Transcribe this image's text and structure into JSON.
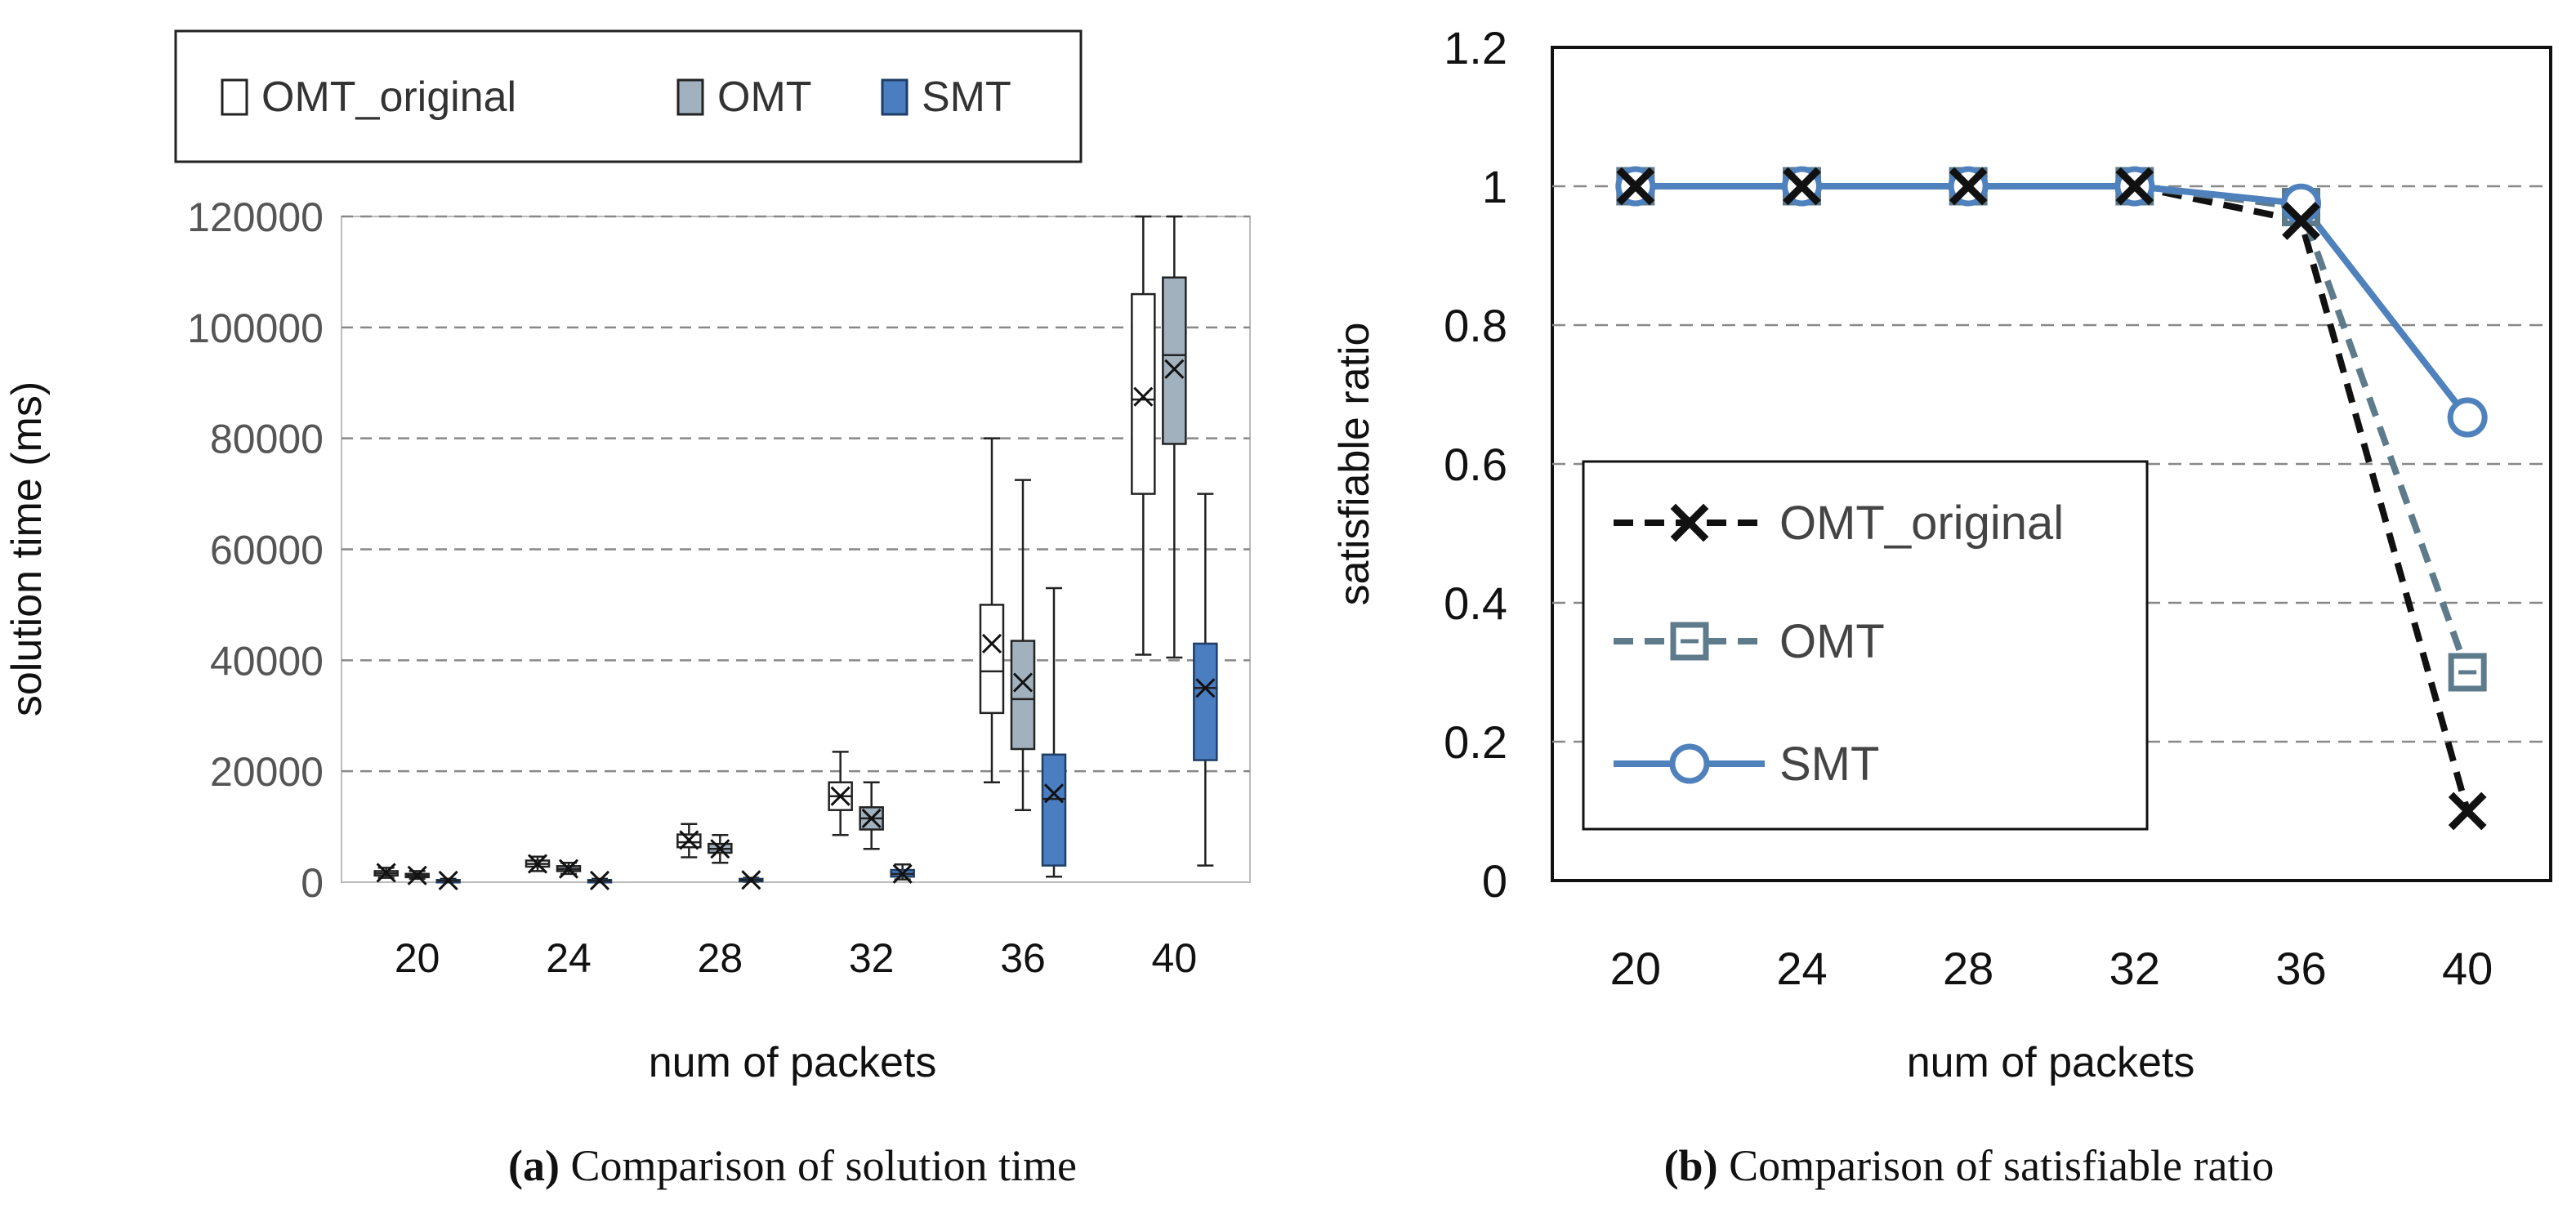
{
  "chart_data": [
    {
      "type": "box",
      "caption_letter": "a",
      "caption_text": "Comparison of solution time",
      "xlabel": "num of packets",
      "ylabel": "solution time (ms)",
      "ylim": [
        0,
        120000
      ],
      "yticks": [
        "0",
        "20000",
        "40000",
        "60000",
        "80000",
        "100000",
        "120000"
      ],
      "yticks_values": [
        0,
        20000,
        40000,
        60000,
        80000,
        100000,
        120000
      ],
      "categories": [
        "20",
        "24",
        "28",
        "32",
        "36",
        "40"
      ],
      "legend": [
        "OMT_original",
        "OMT",
        "SMT"
      ],
      "legend_position": "top",
      "series": [
        {
          "name": "OMT_original",
          "color": "#ffffff",
          "boxes": [
            {
              "min": 800,
              "q1": 1200,
              "median": 1600,
              "q3": 2000,
              "max": 2600,
              "mean": 1700
            },
            {
              "min": 2000,
              "q1": 2800,
              "median": 3300,
              "q3": 3900,
              "max": 4600,
              "mean": 3300
            },
            {
              "min": 4500,
              "q1": 6300,
              "median": 7200,
              "q3": 8600,
              "max": 10500,
              "mean": 7600
            },
            {
              "min": 8500,
              "q1": 13000,
              "median": 15500,
              "q3": 18000,
              "max": 23500,
              "mean": 15500
            },
            {
              "min": 18000,
              "q1": 30500,
              "median": 38000,
              "q3": 50000,
              "max": 80000,
              "mean": 43000
            },
            {
              "min": 41000,
              "q1": 70000,
              "median": 87000,
              "q3": 106000,
              "max": 120000,
              "mean": 87500
            }
          ]
        },
        {
          "name": "OMT",
          "color": "#a2b1be",
          "boxes": [
            {
              "min": 600,
              "q1": 900,
              "median": 1200,
              "q3": 1500,
              "max": 2000,
              "mean": 1200
            },
            {
              "min": 1500,
              "q1": 2000,
              "median": 2400,
              "q3": 2900,
              "max": 3500,
              "mean": 2400
            },
            {
              "min": 3500,
              "q1": 5300,
              "median": 6000,
              "q3": 6900,
              "max": 8500,
              "mean": 6000
            },
            {
              "min": 6000,
              "q1": 9500,
              "median": 11500,
              "q3": 13500,
              "max": 18000,
              "mean": 11500
            },
            {
              "min": 13000,
              "q1": 24000,
              "median": 33000,
              "q3": 43500,
              "max": 72500,
              "mean": 36000
            },
            {
              "min": 40500,
              "q1": 79000,
              "median": 95000,
              "q3": 109000,
              "max": 120000,
              "mean": 92500
            }
          ]
        },
        {
          "name": "SMT",
          "color": "#4a7ec1",
          "boxes": [
            {
              "min": 100,
              "q1": 200,
              "median": 300,
              "q3": 400,
              "max": 600,
              "mean": 300
            },
            {
              "min": 100,
              "q1": 200,
              "median": 300,
              "q3": 400,
              "max": 600,
              "mean": 300
            },
            {
              "min": 100,
              "q1": 200,
              "median": 400,
              "q3": 600,
              "max": 800,
              "mean": 400
            },
            {
              "min": 500,
              "q1": 1000,
              "median": 1500,
              "q3": 2200,
              "max": 3200,
              "mean": 1500
            },
            {
              "min": 1000,
              "q1": 3000,
              "median": 15000,
              "q3": 23000,
              "max": 53000,
              "mean": 16000
            },
            {
              "min": 3000,
              "q1": 22000,
              "median": 35000,
              "q3": 43000,
              "max": 70000,
              "mean": 35000
            }
          ]
        }
      ]
    },
    {
      "type": "line",
      "caption_letter": "b",
      "caption_text": "Comparison of satisfiable ratio",
      "xlabel": "num of packets",
      "ylabel": "satisfiable ratio",
      "ylim": [
        0,
        1.2
      ],
      "yticks": [
        "0",
        "0.2",
        "0.4",
        "0.6",
        "0.8",
        "1",
        "1.2"
      ],
      "yticks_values": [
        0,
        0.2,
        0.4,
        0.6,
        0.8,
        1,
        1.2
      ],
      "categories": [
        "20",
        "24",
        "28",
        "32",
        "36",
        "40"
      ],
      "legend_position": "bottom-left",
      "series": [
        {
          "name": "OMT_original",
          "color": "#111111",
          "style": "dashed",
          "marker": "x",
          "values": [
            1,
            1,
            1,
            1,
            0.95,
            0.1
          ]
        },
        {
          "name": "OMT",
          "color": "#5e7b8c",
          "style": "dashed",
          "marker": "square",
          "values": [
            1,
            1,
            1,
            1,
            0.97,
            0.3
          ]
        },
        {
          "name": "SMT",
          "color": "#4f81bd",
          "style": "solid",
          "marker": "circle",
          "values": [
            1,
            1,
            1,
            1,
            0.975,
            0.667
          ]
        }
      ]
    }
  ]
}
